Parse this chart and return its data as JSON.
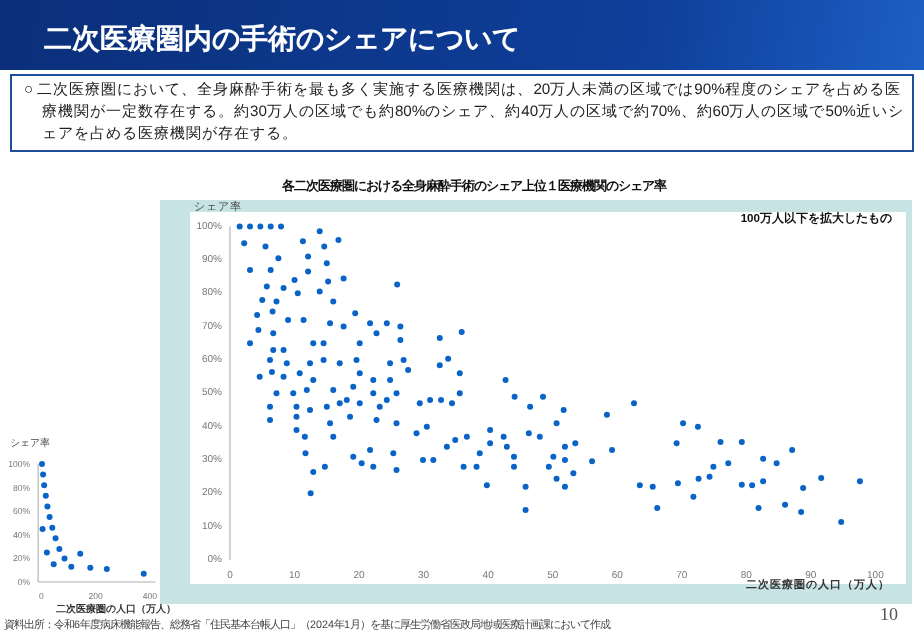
{
  "chart_data": [
    {
      "type": "scatter",
      "title": "各二次医療圏における全身麻酔手術のシェア上位１医療機関のシェア率",
      "xlabel": "二次医療圏の人口（万人）",
      "ylabel": "シェア率",
      "marker": "circle",
      "annotations": [
        "二次医療圏内の手術のシェアについて",
        "○ 二次医療圏において、全身麻酔手術を最も多く実施する医療機関は、20万人未満の区域では90%程度のシェアを占める医療機関が一定数存在する。約30万人の区域でも約80%のシェア、約40万人の区域で約70%、約60万人の区域で50%近いシェアを占める医療機関が存在する。",
        "100万人以下を拡大したもの",
        "資料出所：令和6年度病床機能報告、総務省「住民基本台帳人口」（2024年1月）を基に厚生労働省医政局地域医療計画課において作成",
        "10"
      ],
      "xlim": [
        0,
        100
      ],
      "ylim": [
        0,
        100
      ],
      "xticks": [
        0,
        10,
        20,
        30,
        40,
        50,
        60,
        70,
        80,
        90,
        100
      ],
      "yticks": [
        {
          "value": 0,
          "label": "0%"
        },
        {
          "value": 10,
          "label": "10%"
        },
        {
          "value": 20,
          "label": "20%"
        },
        {
          "value": 30,
          "label": "30%"
        },
        {
          "value": 40,
          "label": "40%"
        },
        {
          "value": 50,
          "label": "50%"
        },
        {
          "value": 60,
          "label": "60%"
        },
        {
          "value": 70,
          "label": "70%"
        },
        {
          "value": 80,
          "label": "80%"
        },
        {
          "value": 90,
          "label": "90%"
        },
        {
          "value": 100,
          "label": "100%"
        }
      ],
      "series": [
        {
          "color": "#0a64c8",
          "x": [
            1.5,
            3.1,
            4.7,
            6.3,
            7.9,
            2.2,
            5.5,
            7.5,
            3.1,
            6.3,
            13.9,
            11.3,
            14.6,
            16.8,
            12.1,
            15,
            12.1,
            17.6,
            15.2,
            25.9,
            5.7,
            8.3,
            10,
            10.5,
            5,
            7.2,
            13.9,
            16,
            4.2,
            6.6,
            4.4,
            9,
            11.4,
            6.7,
            15.5,
            17.6,
            19.4,
            21.7,
            24.3,
            26.4,
            3.1,
            6.7,
            8.3,
            12.9,
            14.5,
            20.1,
            22.7,
            26.4,
            6.2,
            8.8,
            12.4,
            14.5,
            17,
            19.6,
            20.1,
            24.8,
            26.9,
            4.6,
            6.5,
            8.3,
            10.8,
            12.9,
            19.1,
            22.2,
            24.8,
            27.6,
            7.2,
            9.8,
            11.9,
            16,
            18.1,
            22.2,
            24.3,
            25.8,
            29.4,
            31,
            32.7,
            6.2,
            10.3,
            12.4,
            15,
            17,
            20.1,
            23.2,
            34.4,
            35.6,
            6.2,
            10.3,
            15.5,
            18.6,
            22.7,
            25.8,
            10.3,
            11.6,
            16,
            28.9,
            30.5,
            11.7,
            19.1,
            20.4,
            21.7,
            22.2,
            25.3,
            25.8,
            29.9,
            31.5,
            33.6,
            34.9,
            36.7,
            36.2,
            38.7,
            38.2,
            40.3,
            40.3,
            42.4,
            42.9,
            44,
            44,
            42.7,
            44.1,
            46.5,
            48.5,
            46.3,
            48,
            50.1,
            49.4,
            12.9,
            14.7,
            12.5,
            45.8,
            45.8,
            39.8,
            35.6,
            32.5,
            35.9,
            33.8,
            32.5,
            50.6,
            51.7,
            51.9,
            53.5,
            51.9,
            50.6,
            51.9,
            53.2,
            56.1,
            58.4,
            59.2,
            62.6,
            63.5,
            65.5,
            66.2,
            69.2,
            70.2,
            69.4,
            71.8,
            72.6,
            74.3,
            72.5,
            74.9,
            76,
            77.2,
            79.3,
            79.3,
            80.9,
            81.9,
            82.6,
            82.6,
            84.7,
            86,
            87.1,
            88.5,
            88.8,
            91.6,
            97.6,
            94.7
          ],
          "values": [
            100,
            100,
            100,
            100,
            100,
            95,
            94,
            90.5,
            87,
            87,
            98.6,
            95.6,
            94,
            96,
            91,
            89,
            86.5,
            84.4,
            83.5,
            82.6,
            82,
            81.6,
            84,
            80,
            78,
            77.5,
            80.5,
            77.5,
            73.5,
            74.5,
            69,
            72,
            72,
            68,
            71,
            70,
            74,
            71,
            71,
            70,
            65,
            63,
            63,
            65,
            65,
            65,
            68,
            66,
            60,
            59,
            59,
            60,
            59,
            60,
            56,
            59,
            60,
            55,
            56.4,
            55,
            56,
            54,
            52,
            54,
            54,
            57,
            50,
            50,
            51,
            51,
            48,
            50,
            48,
            50,
            47,
            48,
            48,
            46,
            46,
            45,
            46,
            47,
            47,
            46,
            47,
            50,
            42,
            43,
            41,
            43,
            42,
            41,
            39,
            37,
            37,
            38,
            40,
            32,
            31,
            29,
            33,
            28,
            32,
            27,
            30,
            30,
            34,
            36,
            37,
            28,
            32,
            28,
            39,
            35,
            37,
            34,
            31,
            28,
            54,
            49,
            46,
            49,
            38,
            37,
            31,
            28,
            26.4,
            28,
            20,
            22,
            15,
            22.4,
            56,
            66.6,
            68.4,
            60.4,
            58.4,
            41,
            45,
            34,
            35,
            30,
            24.4,
            22,
            26,
            29.6,
            43.6,
            33,
            47,
            22.4,
            22,
            15.6,
            35,
            41,
            23,
            19,
            24.4,
            25,
            40,
            28,
            35.4,
            29,
            35.4,
            22.6,
            22.4,
            15.6,
            30.4,
            23.6,
            29,
            16.6,
            33,
            14.4,
            21.6,
            24.6,
            23.6,
            11.4
          ]
        }
      ]
    },
    {
      "type": "scatter",
      "xlabel": "二次医療圏の人口（万人）",
      "ylabel": "シェア率",
      "marker": "circle",
      "xlim": [
        -12,
        420
      ],
      "ylim": [
        0,
        100
      ],
      "xticks": [
        0,
        200,
        400
      ],
      "yticks": [
        {
          "value": 0,
          "label": "0%"
        },
        {
          "value": 20,
          "label": "20%"
        },
        {
          "value": 40,
          "label": "40%"
        },
        {
          "value": 60,
          "label": "60%"
        },
        {
          "value": 80,
          "label": "80%"
        },
        {
          "value": 100,
          "label": "100%"
        }
      ],
      "series": [
        {
          "color": "#0a64c8",
          "x": [
            2,
            6,
            10,
            16,
            22,
            30,
            40,
            52,
            66,
            85,
            110,
            4,
            20,
            45,
            143,
            180,
            241,
            377
          ],
          "values": [
            100,
            91,
            82,
            73,
            64,
            55,
            46,
            37,
            28,
            20,
            13,
            45,
            25,
            15,
            24,
            12,
            11,
            7
          ]
        }
      ]
    }
  ]
}
